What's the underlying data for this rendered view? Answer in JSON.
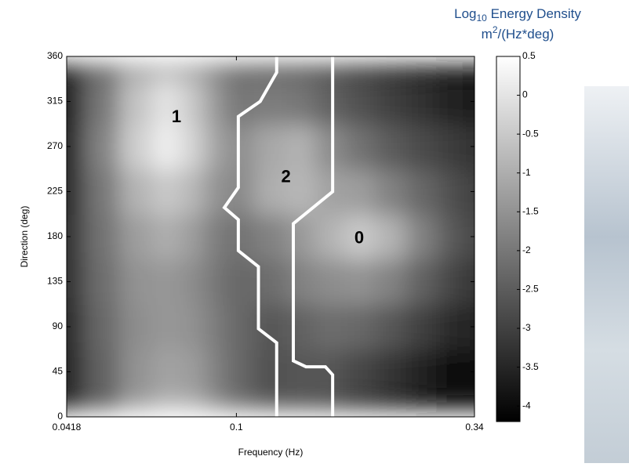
{
  "chart_data": {
    "type": "contour",
    "xlabel": "Frequency (Hz)",
    "ylabel": "Direction (deg)",
    "x": [
      0.0418,
      0.05,
      0.06,
      0.07,
      0.08,
      0.09,
      0.1,
      0.12,
      0.14,
      0.16,
      0.19,
      0.22,
      0.26,
      0.3,
      0.34
    ],
    "y": [
      0,
      45,
      90,
      135,
      180,
      225,
      270,
      315,
      360
    ],
    "z": [
      [
        -3.6,
        -2.5,
        -1.3,
        -0.8,
        -0.9,
        -1.6,
        -2.2,
        -2.6,
        -2.7,
        -2.9,
        -3.3,
        -3.6,
        -3.9,
        -4.1,
        -4.2
      ],
      [
        -3.5,
        -2.4,
        -1.5,
        -1.2,
        -1.3,
        -1.8,
        -2.3,
        -2.7,
        -2.6,
        -2.6,
        -2.9,
        -3.2,
        -3.6,
        -3.9,
        -4.0
      ],
      [
        -3.4,
        -2.3,
        -1.6,
        -1.4,
        -1.5,
        -1.9,
        -2.3,
        -2.6,
        -2.4,
        -2.2,
        -2.3,
        -2.6,
        -3.0,
        -3.4,
        -3.6
      ],
      [
        -3.3,
        -2.2,
        -1.5,
        -1.4,
        -1.6,
        -2.0,
        -2.3,
        -2.2,
        -1.8,
        -1.6,
        -1.5,
        -1.8,
        -2.4,
        -2.9,
        -3.2
      ],
      [
        -3.3,
        -2.1,
        -1.3,
        -1.0,
        -1.3,
        -1.9,
        -2.1,
        -1.8,
        -1.4,
        -0.9,
        -0.5,
        -0.9,
        -1.8,
        -2.5,
        -2.9
      ],
      [
        -3.4,
        -2.0,
        -0.9,
        -0.5,
        -0.8,
        -1.5,
        -1.7,
        -1.0,
        -0.8,
        -1.2,
        -1.3,
        -1.8,
        -2.3,
        -2.7,
        -3.0
      ],
      [
        -3.5,
        -1.8,
        -0.4,
        0.2,
        -0.3,
        -1.2,
        -1.6,
        -1.1,
        -0.9,
        -1.6,
        -2.1,
        -2.5,
        -2.8,
        -3.1,
        -3.3
      ],
      [
        -3.6,
        -2.0,
        -0.6,
        0.0,
        -0.5,
        -1.4,
        -2.0,
        -1.9,
        -2.0,
        -2.4,
        -2.7,
        -3.0,
        -3.3,
        -3.6,
        -3.7
      ],
      [
        -3.6,
        -2.4,
        -1.3,
        -1.0,
        -1.3,
        -1.9,
        -2.4,
        -2.6,
        -2.7,
        -2.9,
        -3.2,
        -3.5,
        -3.8,
        -4.0,
        -4.1
      ]
    ],
    "xlim": [
      0.0418,
      0.34
    ],
    "xscale": "log",
    "xticks": [
      0.0418,
      0.1,
      0.34
    ],
    "ylim": [
      0,
      360
    ],
    "yticks": [
      0,
      45,
      90,
      135,
      180,
      225,
      270,
      315,
      360
    ],
    "colormap": [
      "#000000",
      "#ffffff"
    ],
    "clim": [
      -4.2,
      0.5
    ],
    "cticks": [
      0.5,
      0,
      -0.5,
      -1,
      -1.5,
      -2,
      -2.5,
      -3,
      -3.5,
      -4
    ],
    "colorbar_title": {
      "base": "Log",
      "sub": "10",
      "rest": " Energy Density"
    },
    "colorbar_units": {
      "base": "m",
      "sup": "2",
      "rest": "/(Hz*deg)"
    },
    "boundaries": [
      {
        "color": "#ffffff",
        "x": [
          0.123,
          0.123,
          0.113,
          0.101,
          0.101,
          0.094,
          0.101,
          0.101,
          0.112,
          0.112,
          0.123,
          0.123
        ],
        "y": [
          360,
          344,
          315,
          300,
          229,
          209,
          197,
          166,
          150,
          88,
          74,
          0
        ]
      },
      {
        "color": "#ffffff",
        "x": [
          0.164,
          0.164,
          0.134,
          0.134,
          0.143,
          0.158,
          0.164,
          0.164
        ],
        "y": [
          360,
          225,
          193,
          56,
          50,
          50,
          42,
          0
        ]
      }
    ],
    "annotations": [
      {
        "text": "1",
        "x": 0.0735,
        "y": 299
      },
      {
        "text": "2",
        "x": 0.129,
        "y": 239
      },
      {
        "text": "0",
        "x": 0.188,
        "y": 178
      }
    ]
  }
}
